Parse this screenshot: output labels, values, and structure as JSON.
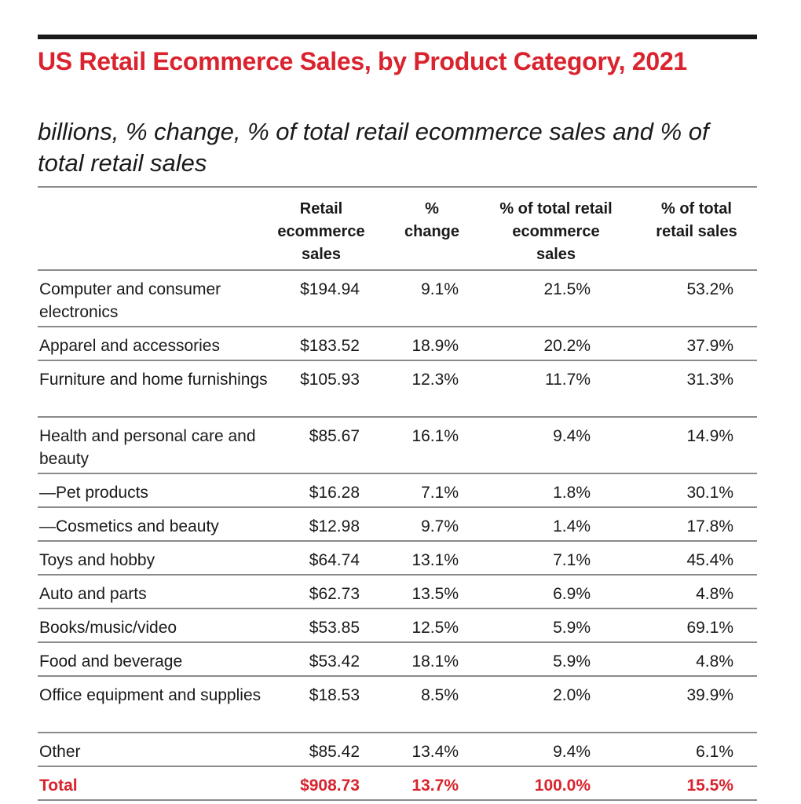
{
  "chart_data": {
    "type": "table",
    "title": "US Retail Ecommerce Sales, by Product Category, 2021",
    "subtitle": "billions, % change, % of total retail ecommerce sales and % of total retail sales",
    "columns": [
      "",
      "Retail\necommerce\nsales",
      "%\nchange",
      "% of total retail\necommerce\nsales",
      "% of total\nretail sales"
    ],
    "rows": [
      {
        "category": "Computer and consumer electronics",
        "sales": "$194.94",
        "change": "9.1%",
        "pct_ecom": "21.5%",
        "pct_retail": "53.2%"
      },
      {
        "category": "Apparel and accessories",
        "sales": "$183.52",
        "change": "18.9%",
        "pct_ecom": "20.2%",
        "pct_retail": "37.9%"
      },
      {
        "category": "Furniture and home furnishings",
        "sales": "$105.93",
        "change": "12.3%",
        "pct_ecom": "11.7%",
        "pct_retail": "31.3%"
      },
      {
        "category": "Health and personal care and beauty",
        "sales": "$85.67",
        "change": "16.1%",
        "pct_ecom": "9.4%",
        "pct_retail": "14.9%"
      },
      {
        "category": "—Pet products",
        "sales": "$16.28",
        "change": "7.1%",
        "pct_ecom": "1.8%",
        "pct_retail": "30.1%"
      },
      {
        "category": "—Cosmetics and beauty",
        "sales": "$12.98",
        "change": "9.7%",
        "pct_ecom": "1.4%",
        "pct_retail": "17.8%"
      },
      {
        "category": "Toys and hobby",
        "sales": "$64.74",
        "change": "13.1%",
        "pct_ecom": "7.1%",
        "pct_retail": "45.4%"
      },
      {
        "category": "Auto and parts",
        "sales": "$62.73",
        "change": "13.5%",
        "pct_ecom": "6.9%",
        "pct_retail": "4.8%"
      },
      {
        "category": "Books/music/video",
        "sales": "$53.85",
        "change": "12.5%",
        "pct_ecom": "5.9%",
        "pct_retail": "69.1%"
      },
      {
        "category": "Food and beverage",
        "sales": "$53.42",
        "change": "18.1%",
        "pct_ecom": "5.9%",
        "pct_retail": "4.8%"
      },
      {
        "category": "Office equipment and supplies",
        "sales": "$18.53",
        "change": "8.5%",
        "pct_ecom": "2.0%",
        "pct_retail": "39.9%"
      },
      {
        "category": "Other",
        "sales": "$85.42",
        "change": "13.4%",
        "pct_ecom": "9.4%",
        "pct_retail": "6.1%"
      }
    ],
    "total": {
      "category": "Total",
      "sales": "$908.73",
      "change": "13.7%",
      "pct_ecom": "100.0%",
      "pct_retail": "15.5%"
    },
    "colors": {
      "accent": "#d9232e",
      "text": "#1a1a1a",
      "rule": "#8a8a8a"
    }
  }
}
